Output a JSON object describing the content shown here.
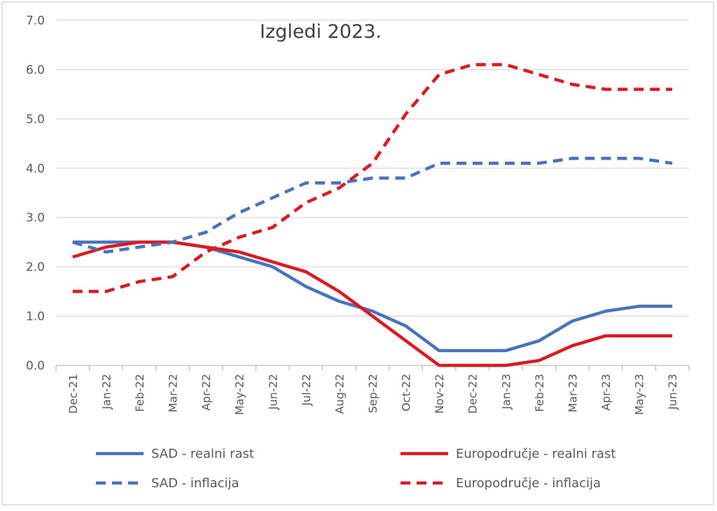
{
  "chart_data": {
    "type": "line",
    "title": "Izgledi 2023.",
    "xlabel": "",
    "ylabel": "",
    "ylim": [
      0,
      7
    ],
    "yticks": [
      "0.0",
      "1.0",
      "2.0",
      "3.0",
      "4.0",
      "5.0",
      "6.0",
      "7.0"
    ],
    "grid": true,
    "legend_position": "bottom",
    "categories": [
      "Dec-21",
      "Jan-22",
      "Feb-22",
      "Mar-22",
      "Apr-22",
      "May-22",
      "Jun-22",
      "Jul-22",
      "Aug-22",
      "Sep-22",
      "Oct-22",
      "Nov-22",
      "Dec-22",
      "Jan-23",
      "Feb-23",
      "Mar-23",
      "Apr-23",
      "May-23",
      "Jun-23"
    ],
    "series": [
      {
        "name": "SAD - realni rast",
        "color": "#4472C4",
        "dashed": false,
        "values": [
          2.5,
          2.5,
          2.5,
          2.5,
          2.4,
          2.2,
          2.0,
          1.6,
          1.3,
          1.1,
          0.8,
          0.3,
          0.3,
          0.3,
          0.5,
          0.9,
          1.1,
          1.2,
          1.2
        ]
      },
      {
        "name": "Europodručje - realni rast",
        "color": "#E8141B",
        "dashed": false,
        "values": [
          2.2,
          2.4,
          2.5,
          2.5,
          2.4,
          2.3,
          2.1,
          1.9,
          1.5,
          1.0,
          0.5,
          0.0,
          0.0,
          0.0,
          0.1,
          0.4,
          0.6,
          0.6,
          0.6
        ]
      },
      {
        "name": "SAD - inflacija",
        "color": "#4472C4",
        "dashed": true,
        "values": [
          2.5,
          2.3,
          2.4,
          2.5,
          2.7,
          3.1,
          3.4,
          3.7,
          3.7,
          3.8,
          3.8,
          4.1,
          4.1,
          4.1,
          4.1,
          4.2,
          4.2,
          4.2,
          4.1
        ]
      },
      {
        "name": "Europodručje - inflacija",
        "color": "#E8141B",
        "dashed": true,
        "values": [
          1.5,
          1.5,
          1.7,
          1.8,
          2.3,
          2.6,
          2.8,
          3.3,
          3.6,
          4.1,
          5.1,
          5.9,
          6.1,
          6.1,
          5.9,
          5.7,
          5.6,
          5.6,
          5.6
        ]
      }
    ]
  }
}
